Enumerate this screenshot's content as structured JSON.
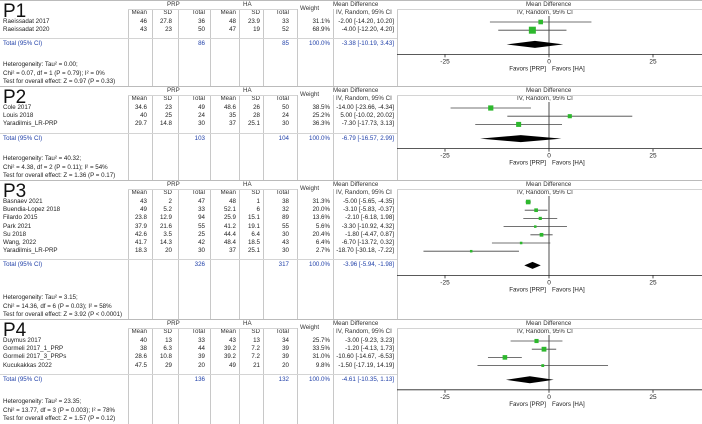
{
  "colors": {
    "point": "#2db82d",
    "diamond": "#000000",
    "total_text": "#1f3fa8",
    "lines": "#555555"
  },
  "headers": {
    "group1": "PRP",
    "group2": "HA",
    "mean": "Mean",
    "sd": "SD",
    "total": "Total",
    "weight": "Weight",
    "md": "Mean Difference",
    "md_sub": "IV, Random, 95% CI"
  },
  "axis": {
    "ticks": [
      "-25",
      "0",
      "25"
    ],
    "favors_left": "Favors [PRP]",
    "favors_right": "Favors [HA]"
  },
  "chart_data": [
    {
      "type": "forest",
      "title": "P1",
      "axis_range": [
        -50,
        50
      ],
      "studies": [
        {
          "name": "Raeissadat 2017",
          "m1": "46",
          "sd1": "27.8",
          "n1": "36",
          "m2": "48",
          "sd2": "23.9",
          "n2": "33",
          "weight": "31.1%",
          "ci": "-2.00 [-14.20, 10.20]",
          "md": -2.0,
          "lo": -14.2,
          "hi": 10.2
        },
        {
          "name": "Raeissadat 2020",
          "m1": "43",
          "sd1": "23",
          "n1": "50",
          "m2": "47",
          "sd2": "19",
          "n2": "52",
          "weight": "68.9%",
          "ci": "-4.00 [-12.20, 4.20]",
          "md": -4.0,
          "lo": -12.2,
          "hi": 4.2
        }
      ],
      "total": {
        "label": "Total (95% CI)",
        "n1": "86",
        "n2": "85",
        "weight": "100.0%",
        "ci": "-3.38 [-10.19, 3.43]",
        "md": -3.38,
        "lo": -10.19,
        "hi": 3.43
      },
      "notes": [
        "Heterogeneity: Tau² = 0.00;",
        "Chi² = 0.07, df = 1 (P = 0.79); I² = 0%",
        "Test for overall effect: Z = 0.97 (P = 0.33)"
      ]
    },
    {
      "type": "forest",
      "title": "P2",
      "axis_range": [
        -50,
        50
      ],
      "studies": [
        {
          "name": "Cole 2017",
          "m1": "34.6",
          "sd1": "23",
          "n1": "49",
          "m2": "48.6",
          "sd2": "26",
          "n2": "50",
          "weight": "38.5%",
          "ci": "-14.00 [-23.66, -4.34]",
          "md": -14.0,
          "lo": -23.66,
          "hi": -4.34
        },
        {
          "name": "Louis 2018",
          "m1": "40",
          "sd1": "25",
          "n1": "24",
          "m2": "35",
          "sd2": "28",
          "n2": "24",
          "weight": "25.2%",
          "ci": "5.00 [-10.02, 20.02]",
          "md": 5.0,
          "lo": -10.02,
          "hi": 20.02
        },
        {
          "name": "Yaradilmis_LR-PRP",
          "m1": "29.7",
          "sd1": "14.8",
          "n1": "30",
          "m2": "37",
          "sd2": "25.1",
          "n2": "30",
          "weight": "36.3%",
          "ci": "-7.30 [-17.73, 3.13]",
          "md": -7.3,
          "lo": -17.73,
          "hi": 3.13
        }
      ],
      "total": {
        "label": "Total (95% CI)",
        "n1": "103",
        "n2": "104",
        "weight": "100.0%",
        "ci": "-6.79 [-16.57, 2.99]",
        "md": -6.79,
        "lo": -16.57,
        "hi": 2.99
      },
      "notes": [
        "Heterogeneity: Tau² = 40.32;",
        "Chi² = 4.38, df = 2 (P = 0.11); I² = 54%",
        "Test for overall effect: Z = 1.36 (P = 0.17)"
      ]
    },
    {
      "type": "forest",
      "title": "P3",
      "axis_range": [
        -50,
        50
      ],
      "studies": [
        {
          "name": "Basnaev 2021",
          "m1": "43",
          "sd1": "2",
          "n1": "47",
          "m2": "48",
          "sd2": "1",
          "n2": "38",
          "weight": "31.3%",
          "ci": "-5.00 [-5.65, -4.35]",
          "md": -5.0,
          "lo": -5.65,
          "hi": -4.35
        },
        {
          "name": "Buendia-Lopez 2018",
          "m1": "49",
          "sd1": "5.2",
          "n1": "33",
          "m2": "52.1",
          "sd2": "6",
          "n2": "32",
          "weight": "20.0%",
          "ci": "-3.10 [-5.83, -0.37]",
          "md": -3.1,
          "lo": -5.83,
          "hi": -0.37
        },
        {
          "name": "Filardo 2015",
          "m1": "23.8",
          "sd1": "12.9",
          "n1": "94",
          "m2": "25.9",
          "sd2": "15.1",
          "n2": "89",
          "weight": "13.6%",
          "ci": "-2.10 [-6.18, 1.98]",
          "md": -2.1,
          "lo": -6.18,
          "hi": 1.98
        },
        {
          "name": "Park 2021",
          "m1": "37.9",
          "sd1": "21.6",
          "n1": "55",
          "m2": "41.2",
          "sd2": "19.1",
          "n2": "55",
          "weight": "5.6%",
          "ci": "-3.30 [-10.92, 4.32]",
          "md": -3.3,
          "lo": -10.92,
          "hi": 4.32
        },
        {
          "name": "Su 2018",
          "m1": "42.6",
          "sd1": "3.5",
          "n1": "25",
          "m2": "44.4",
          "sd2": "6.4",
          "n2": "30",
          "weight": "20.4%",
          "ci": "-1.80 [-4.47, 0.87]",
          "md": -1.8,
          "lo": -4.47,
          "hi": 0.87
        },
        {
          "name": "Wang, 2022",
          "m1": "41.7",
          "sd1": "14.3",
          "n1": "42",
          "m2": "48.4",
          "sd2": "18.5",
          "n2": "43",
          "weight": "6.4%",
          "ci": "-6.70 [-13.72, 0.32]",
          "md": -6.7,
          "lo": -13.72,
          "hi": 0.32
        },
        {
          "name": "Yaradilmis_LR-PRP",
          "m1": "18.3",
          "sd1": "20",
          "n1": "30",
          "m2": "37",
          "sd2": "25.1",
          "n2": "30",
          "weight": "2.7%",
          "ci": "-18.70 [-30.18, -7.22]",
          "md": -18.7,
          "lo": -30.18,
          "hi": -7.22
        }
      ],
      "total": {
        "label": "Total (95% CI)",
        "n1": "326",
        "n2": "317",
        "weight": "100.0%",
        "ci": "-3.96 [-5.94, -1.98]",
        "md": -3.96,
        "lo": -5.94,
        "hi": -1.98
      },
      "notes": [
        "Heterogeneity: Tau² = 3.15;",
        "Chi² = 14.36, df = 6 (P = 0.03); I² = 58%",
        "Test for overall effect: Z = 3.92 (P < 0.0001)"
      ]
    },
    {
      "type": "forest",
      "title": "P4",
      "axis_range": [
        -50,
        50
      ],
      "studies": [
        {
          "name": "Duymus 2017",
          "m1": "40",
          "sd1": "13",
          "n1": "33",
          "m2": "43",
          "sd2": "13",
          "n2": "34",
          "weight": "25.7%",
          "ci": "-3.00 [-9.23, 3.23]",
          "md": -3.0,
          "lo": -9.23,
          "hi": 3.23
        },
        {
          "name": "Gormeli 2017_1_PRP",
          "m1": "38",
          "sd1": "6.3",
          "n1": "44",
          "m2": "39.2",
          "sd2": "7.2",
          "n2": "39",
          "weight": "33.5%",
          "ci": "-1.20 [-4.13, 1.73]",
          "md": -1.2,
          "lo": -4.13,
          "hi": 1.73
        },
        {
          "name": "Gormeli 2017_3_PRPs",
          "m1": "28.6",
          "sd1": "10.8",
          "n1": "39",
          "m2": "39.2",
          "sd2": "7.2",
          "n2": "39",
          "weight": "31.0%",
          "ci": "-10.60 [-14.67, -6.53]",
          "md": -10.6,
          "lo": -14.67,
          "hi": -6.53
        },
        {
          "name": "Kucukakkas 2022",
          "m1": "47.5",
          "sd1": "29",
          "n1": "20",
          "m2": "49",
          "sd2": "21",
          "n2": "20",
          "weight": "9.8%",
          "ci": "-1.50 [-17.19, 14.19]",
          "md": -1.5,
          "lo": -17.19,
          "hi": 14.19
        }
      ],
      "total": {
        "label": "Total (95% CI)",
        "n1": "136",
        "n2": "132",
        "weight": "100.0%",
        "ci": "-4.61 [-10.35, 1.13]",
        "md": -4.61,
        "lo": -10.35,
        "hi": 1.13
      },
      "notes": [
        "Heterogeneity: Tau² = 23.35;",
        "Chi² = 13.77, df = 3 (P = 0.003); I² = 78%",
        "Test for overall effect: Z = 1.57 (P = 0.12)"
      ]
    }
  ]
}
